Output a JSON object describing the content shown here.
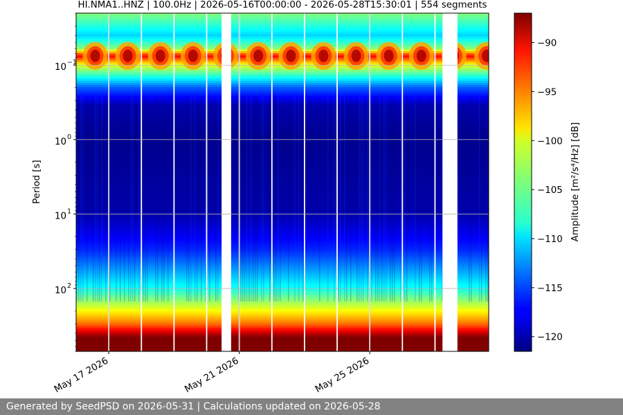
{
  "chart_data": {
    "type": "heatmap",
    "title": "HI.NMA1..HNZ | 100.0Hz | 2026-05-16T00:00:00 - 2026-05-28T15:30:01 | 554 segments",
    "xlabel": "",
    "ylabel": "Period [s]",
    "y_scale": "log",
    "y_inverted": true,
    "y_range_s": [
      0.02,
      700
    ],
    "y_ticks": [
      {
        "value": 0.1,
        "base": "10",
        "exp": "−1"
      },
      {
        "value": 1,
        "base": "10",
        "exp": "0"
      },
      {
        "value": 10,
        "base": "10",
        "exp": "1"
      },
      {
        "value": 100,
        "base": "10",
        "exp": "2"
      }
    ],
    "x_range": [
      "2026-05-16T00:00:00",
      "2026-05-28T15:30:01"
    ],
    "x_ticks": [
      {
        "date": "2026-05-17",
        "label": "May 17 2026"
      },
      {
        "date": "2026-05-21",
        "label": "May 21 2026"
      },
      {
        "date": "2026-05-25",
        "label": "May 25 2026"
      }
    ],
    "data_gaps": [
      {
        "start": "2026-05-20T11:00:00",
        "end": "2026-05-20T18:00:00"
      },
      {
        "start": "2026-05-27T05:30:00",
        "end": "2026-05-27T16:30:00"
      }
    ],
    "daily_lines": [
      "2026-05-17",
      "2026-05-18",
      "2026-05-19",
      "2026-05-20",
      "2026-05-21",
      "2026-05-22",
      "2026-05-23",
      "2026-05-24",
      "2026-05-25",
      "2026-05-26",
      "2026-05-27"
    ],
    "grid": true,
    "colormap": "jet",
    "colorbar": {
      "label": "Amplitude [m²/s⁴/Hz] [dB]",
      "range_db": [
        -121.5,
        -87
      ],
      "ticks": [
        -90,
        -95,
        -100,
        -105,
        -110,
        -115,
        -120
      ]
    },
    "band_levels_db": [
      {
        "period_s": 0.02,
        "db": -104
      },
      {
        "period_s": 0.04,
        "db": -110
      },
      {
        "period_s": 0.06,
        "db": -104
      },
      {
        "period_s": 0.075,
        "db": -91
      },
      {
        "period_s": 0.1,
        "db": -101
      },
      {
        "period_s": 0.2,
        "db": -114
      },
      {
        "period_s": 0.35,
        "db": -120
      },
      {
        "period_s": 1,
        "db": -121
      },
      {
        "period_s": 10,
        "db": -120
      },
      {
        "period_s": 30,
        "db": -116
      },
      {
        "period_s": 100,
        "db": -108
      },
      {
        "period_s": 200,
        "db": -100
      },
      {
        "period_s": 300,
        "db": -95
      },
      {
        "period_s": 450,
        "db": -87
      },
      {
        "period_s": 700,
        "db": -87
      }
    ]
  },
  "footer": {
    "text": "Generated by SeedPSD on 2026-05-31 | Calculations updated on 2026-05-28"
  }
}
